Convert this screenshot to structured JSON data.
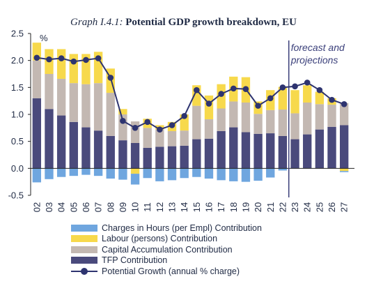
{
  "title": {
    "prefix": "Graph I.4.1:",
    "main": "Potential GDP growth breakdown, EU"
  },
  "chart_data": {
    "type": "bar",
    "stacked": true,
    "y_unit": "%",
    "ylim": [
      -0.5,
      2.5
    ],
    "yticks": [
      "-0.5",
      "0.0",
      "0.5",
      "1.0",
      "1.5",
      "2.0",
      "2.5"
    ],
    "ytick_values": [
      -0.5,
      0.0,
      0.5,
      1.0,
      1.5,
      2.0,
      2.5
    ],
    "categories": [
      "02",
      "03",
      "04",
      "05",
      "06",
      "07",
      "08",
      "09",
      "10",
      "11",
      "12",
      "13",
      "14",
      "15",
      "16",
      "17",
      "18",
      "19",
      "20",
      "21",
      "22",
      "23",
      "24",
      "25",
      "26",
      "27"
    ],
    "annotation": "forecast and projections",
    "annotation_after_category": "22",
    "series": [
      {
        "name": "Charges in Hours (per Empl) Contribution",
        "color": "#6fa6df",
        "kind": "bar",
        "values": [
          -0.26,
          -0.2,
          -0.16,
          -0.14,
          -0.12,
          -0.14,
          -0.19,
          -0.21,
          -0.2,
          -0.18,
          -0.24,
          -0.22,
          -0.18,
          -0.16,
          -0.19,
          -0.22,
          -0.24,
          -0.25,
          -0.23,
          -0.17,
          -0.04,
          0,
          0,
          0,
          0,
          -0.02
        ]
      },
      {
        "name": "Labour (persons) Contribution",
        "color": "#f7d94c",
        "kind": "bar",
        "values": [
          0.33,
          0.46,
          0.55,
          0.54,
          0.56,
          0.58,
          0.45,
          0.1,
          -0.1,
          0.17,
          0.08,
          0.17,
          0.3,
          0.38,
          0.44,
          0.45,
          0.46,
          0.47,
          0.23,
          0.37,
          0.42,
          0.43,
          0.32,
          0.23,
          0.12,
          -0.05
        ]
      },
      {
        "name": "Capital Accumulation Contribution",
        "color": "#c3b8b2",
        "kind": "bar",
        "values": [
          0.7,
          0.65,
          0.68,
          0.72,
          0.8,
          0.88,
          0.8,
          0.48,
          0.4,
          0.37,
          0.32,
          0.28,
          0.28,
          0.62,
          0.36,
          0.42,
          0.48,
          0.55,
          0.37,
          0.43,
          0.49,
          0.48,
          0.59,
          0.47,
          0.41,
          0.41
        ]
      },
      {
        "name": "TFP Contribution",
        "color": "#4a4a7c",
        "kind": "bar",
        "values": [
          1.3,
          1.1,
          0.98,
          0.86,
          0.76,
          0.7,
          0.6,
          0.52,
          0.47,
          0.38,
          0.4,
          0.41,
          0.42,
          0.54,
          0.55,
          0.69,
          0.76,
          0.67,
          0.64,
          0.65,
          0.6,
          0.54,
          0.63,
          0.72,
          0.77,
          0.8
        ]
      },
      {
        "name": "Potential Growth (annual % charge)",
        "color": "#2e3470",
        "kind": "line",
        "values": [
          2.05,
          2.02,
          2.04,
          1.98,
          2.01,
          2.04,
          1.68,
          0.88,
          0.75,
          0.86,
          0.72,
          0.8,
          0.97,
          1.45,
          1.2,
          1.38,
          1.48,
          1.47,
          1.16,
          1.3,
          1.5,
          1.52,
          1.59,
          1.45,
          1.27,
          1.19
        ]
      }
    ],
    "grid": false,
    "legend_position": "bottom"
  }
}
